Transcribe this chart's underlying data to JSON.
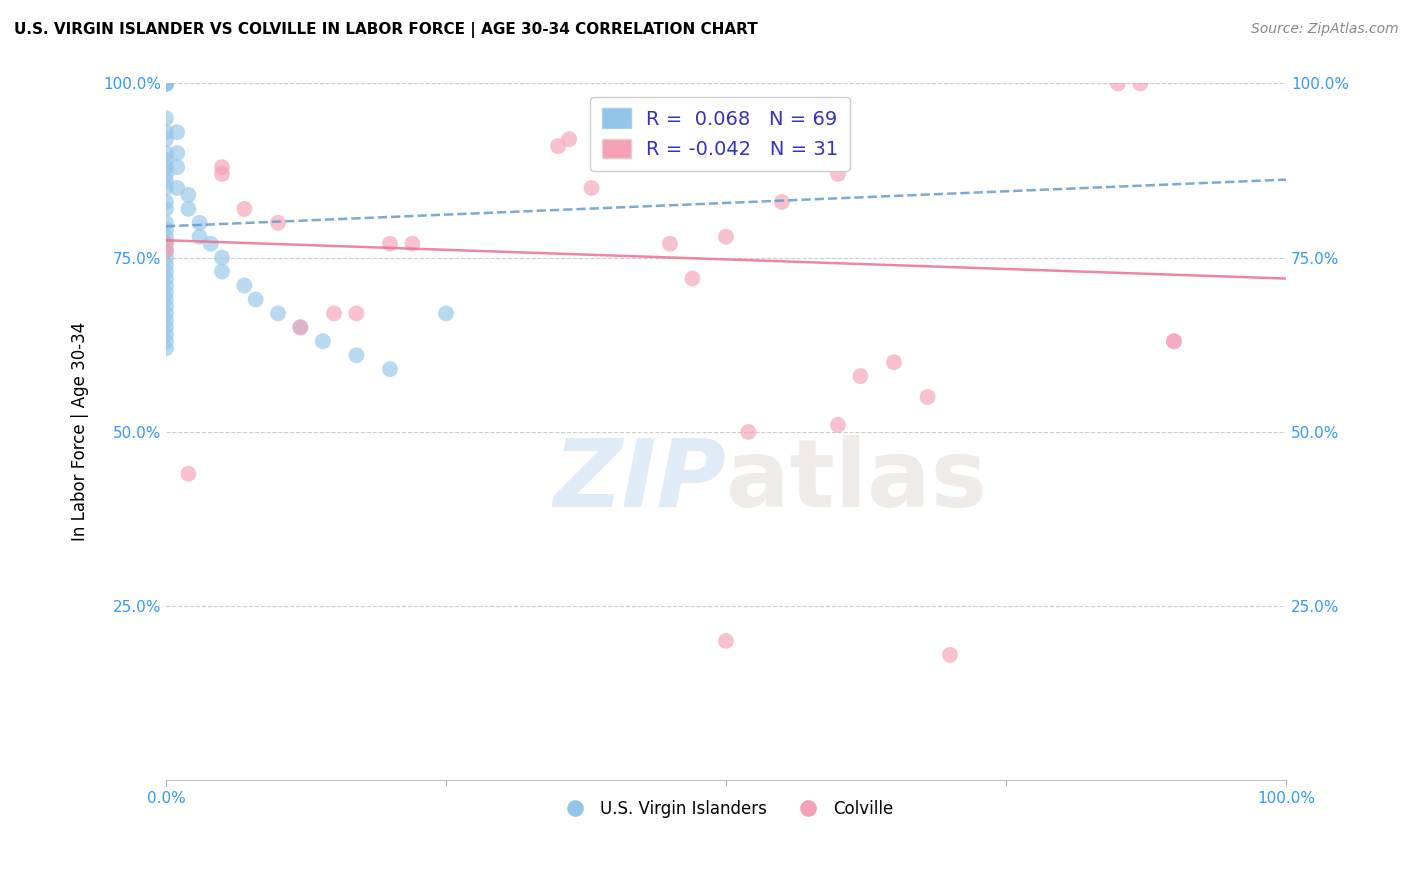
{
  "title": "U.S. VIRGIN ISLANDER VS COLVILLE IN LABOR FORCE | AGE 30-34 CORRELATION CHART",
  "source": "Source: ZipAtlas.com",
  "ylabel": "In Labor Force | Age 30-34",
  "xlim": [
    0.0,
    1.0
  ],
  "ylim": [
    0.0,
    1.0
  ],
  "R_blue": 0.068,
  "N_blue": 69,
  "R_pink": -0.042,
  "N_pink": 31,
  "blue_color": "#92C5E8",
  "pink_color": "#F4A0B5",
  "blue_line_color": "#6699CC",
  "pink_line_color": "#EE7090",
  "legend_label_blue": "U.S. Virgin Islanders",
  "legend_label_pink": "Colville",
  "watermark_zip": "ZIP",
  "watermark_atlas": "atlas",
  "blue_scatter_x": [
    0.0,
    0.0,
    0.0,
    0.0,
    0.0,
    0.0,
    0.0,
    0.0,
    0.0,
    0.0,
    0.0,
    0.0,
    0.0,
    0.0,
    0.0,
    0.0,
    0.0,
    0.0,
    0.0,
    0.0,
    0.0,
    0.0,
    0.0,
    0.0,
    0.0,
    0.0,
    0.0,
    0.0,
    0.0,
    0.0,
    0.0,
    0.0,
    0.0,
    0.0,
    0.0,
    0.0,
    0.0,
    0.0,
    0.0,
    0.0,
    0.0,
    0.0,
    0.0,
    0.0,
    0.0,
    0.0,
    0.0,
    0.0,
    0.0,
    0.0,
    0.01,
    0.01,
    0.01,
    0.01,
    0.02,
    0.02,
    0.03,
    0.03,
    0.04,
    0.05,
    0.05,
    0.07,
    0.08,
    0.1,
    0.12,
    0.14,
    0.17,
    0.2,
    0.25
  ],
  "blue_scatter_y": [
    1.0,
    1.0,
    1.0,
    1.0,
    1.0,
    1.0,
    1.0,
    1.0,
    1.0,
    1.0,
    1.0,
    1.0,
    1.0,
    1.0,
    1.0,
    1.0,
    1.0,
    1.0,
    1.0,
    1.0,
    0.95,
    0.93,
    0.92,
    0.9,
    0.89,
    0.88,
    0.87,
    0.86,
    0.85,
    0.83,
    0.82,
    0.8,
    0.79,
    0.78,
    0.77,
    0.76,
    0.75,
    0.74,
    0.73,
    0.72,
    0.71,
    0.7,
    0.69,
    0.68,
    0.67,
    0.66,
    0.65,
    0.64,
    0.63,
    0.62,
    0.93,
    0.9,
    0.88,
    0.85,
    0.84,
    0.82,
    0.8,
    0.78,
    0.77,
    0.75,
    0.73,
    0.71,
    0.69,
    0.67,
    0.65,
    0.63,
    0.61,
    0.59,
    0.67
  ],
  "pink_scatter_x": [
    0.0,
    0.0,
    0.02,
    0.05,
    0.05,
    0.07,
    0.1,
    0.12,
    0.15,
    0.17,
    0.2,
    0.22,
    0.35,
    0.36,
    0.38,
    0.45,
    0.47,
    0.5,
    0.52,
    0.55,
    0.6,
    0.62,
    0.65,
    0.68,
    0.7,
    0.85,
    0.87,
    0.9,
    0.9,
    0.6,
    0.5
  ],
  "pink_scatter_y": [
    0.77,
    0.76,
    0.44,
    0.88,
    0.87,
    0.82,
    0.8,
    0.65,
    0.67,
    0.67,
    0.77,
    0.77,
    0.91,
    0.92,
    0.85,
    0.77,
    0.72,
    0.78,
    0.5,
    0.83,
    0.87,
    0.58,
    0.6,
    0.55,
    0.18,
    1.0,
    1.0,
    0.63,
    0.63,
    0.51,
    0.2
  ],
  "blue_trendline_x": [
    0.0,
    1.0
  ],
  "blue_trendline_y": [
    0.795,
    0.862
  ],
  "pink_trendline_x": [
    0.0,
    1.0
  ],
  "pink_trendline_y": [
    0.775,
    0.72
  ]
}
